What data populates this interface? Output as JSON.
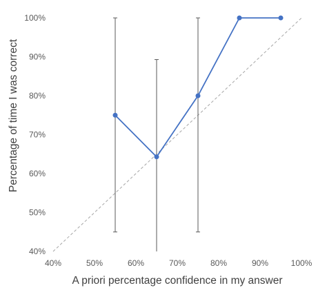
{
  "chart_data": {
    "type": "line",
    "title": "",
    "xlabel": "A priori percentage confidence in my answer",
    "ylabel": "Percentage of time I was correct",
    "xlim": [
      40,
      100
    ],
    "ylim": [
      40,
      100
    ],
    "x_ticks": [
      40,
      50,
      60,
      70,
      80,
      90,
      100
    ],
    "y_ticks": [
      40,
      50,
      60,
      70,
      80,
      90,
      100
    ],
    "x_tick_labels": [
      "40%",
      "50%",
      "60%",
      "70%",
      "80%",
      "90%",
      "100%"
    ],
    "y_tick_labels": [
      "40%",
      "50%",
      "60%",
      "70%",
      "80%",
      "90%",
      "100%"
    ],
    "grid": false,
    "legend": "none",
    "series": [
      {
        "x": [
          55,
          65,
          75,
          85,
          95
        ],
        "y": [
          75,
          64.3,
          80,
          100,
          100
        ],
        "error_low": [
          45,
          40,
          45,
          null,
          null
        ],
        "error_high": [
          100,
          89.3,
          100,
          null,
          null
        ],
        "color": "#4472C4"
      }
    ],
    "reference_line": {
      "from": [
        40,
        40
      ],
      "to": [
        100,
        100
      ],
      "style": "dashed",
      "color": "#A6A6A6"
    }
  }
}
